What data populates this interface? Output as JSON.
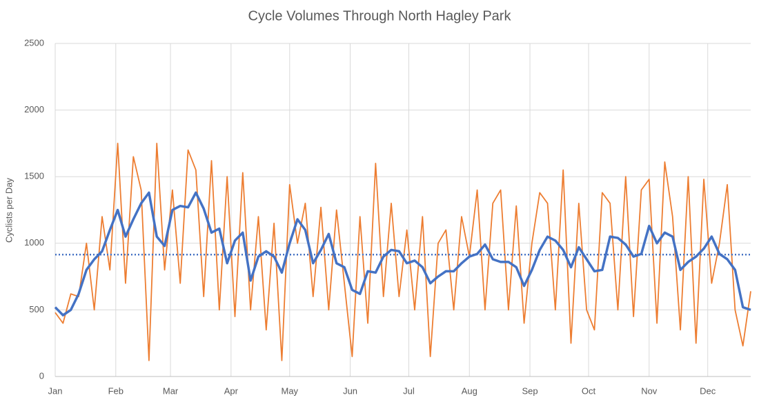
{
  "chart_data": {
    "type": "line",
    "title": "Cycle Volumes Through North Hagley Park",
    "y_label": "Cyclists per Day",
    "x": [
      1,
      5,
      9,
      13,
      17,
      21,
      25,
      29,
      33,
      37,
      41,
      45,
      49,
      53,
      57,
      61,
      65,
      69,
      73,
      77,
      81,
      85,
      89,
      93,
      97,
      101,
      105,
      109,
      113,
      117,
      121,
      125,
      129,
      133,
      137,
      141,
      145,
      149,
      153,
      157,
      161,
      165,
      169,
      173,
      177,
      181,
      185,
      189,
      193,
      197,
      201,
      205,
      209,
      213,
      217,
      221,
      225,
      229,
      233,
      237,
      241,
      245,
      249,
      253,
      257,
      261,
      265,
      269,
      273,
      277,
      281,
      285,
      289,
      293,
      297,
      301,
      305,
      309,
      313,
      317,
      321,
      325,
      329,
      333,
      337,
      341,
      345,
      349,
      353,
      357
    ],
    "series": [
      {
        "color": "#ed7d31",
        "width": 1.8,
        "values": [
          480,
          400,
          620,
          600,
          1000,
          500,
          1200,
          800,
          1750,
          700,
          1650,
          1400,
          120,
          1750,
          800,
          1400,
          700,
          1700,
          1550,
          600,
          1620,
          500,
          1500,
          450,
          1530,
          500,
          1200,
          350,
          1150,
          120,
          1440,
          1000,
          1300,
          600,
          1270,
          500,
          1250,
          700,
          150,
          1200,
          400,
          1600,
          600,
          1300,
          600,
          1100,
          500,
          1200,
          150,
          1000,
          1100,
          500,
          1200,
          900,
          1400,
          500,
          1300,
          1400,
          500,
          1280,
          400,
          1000,
          1380,
          1300,
          500,
          1550,
          250,
          1300,
          500,
          350,
          1380,
          1300,
          500,
          1500,
          450,
          1400,
          1480,
          400,
          1610,
          1200,
          350,
          1500,
          250,
          1480,
          700,
          1000,
          1440,
          500,
          230,
          640
        ]
      },
      {
        "color": "#4472c4",
        "width": 3.5,
        "values": [
          520,
          460,
          500,
          620,
          800,
          880,
          940,
          1100,
          1250,
          1050,
          1180,
          1300,
          1380,
          1050,
          980,
          1250,
          1280,
          1270,
          1380,
          1260,
          1080,
          1110,
          850,
          1020,
          1080,
          720,
          900,
          940,
          900,
          780,
          1000,
          1180,
          1100,
          850,
          950,
          1070,
          850,
          820,
          650,
          620,
          790,
          780,
          900,
          950,
          940,
          850,
          870,
          820,
          700,
          750,
          790,
          790,
          850,
          900,
          920,
          990,
          880,
          860,
          860,
          820,
          680,
          800,
          950,
          1050,
          1020,
          950,
          820,
          970,
          880,
          790,
          800,
          1050,
          1040,
          990,
          900,
          920,
          1130,
          1000,
          1080,
          1050,
          800,
          860,
          900,
          960,
          1050,
          920,
          880,
          800,
          520,
          500
        ]
      }
    ],
    "reference_line": {
      "value": 915,
      "color": "#4472c4"
    },
    "xlim": [
      1,
      357
    ],
    "xticks": [
      {
        "value": 1,
        "label": "Jan"
      },
      {
        "value": 32,
        "label": "Feb"
      },
      {
        "value": 60,
        "label": "Mar"
      },
      {
        "value": 91,
        "label": "Apr"
      },
      {
        "value": 121,
        "label": "May"
      },
      {
        "value": 152,
        "label": "Jun"
      },
      {
        "value": 182,
        "label": "Jul"
      },
      {
        "value": 213,
        "label": "Aug"
      },
      {
        "value": 244,
        "label": "Sep"
      },
      {
        "value": 274,
        "label": "Oct"
      },
      {
        "value": 305,
        "label": "Nov"
      },
      {
        "value": 335,
        "label": "Dec"
      }
    ],
    "ylim": [
      0,
      2500
    ],
    "yticks": [
      0,
      500,
      1000,
      1500,
      2000,
      2500
    ],
    "grid": true
  }
}
